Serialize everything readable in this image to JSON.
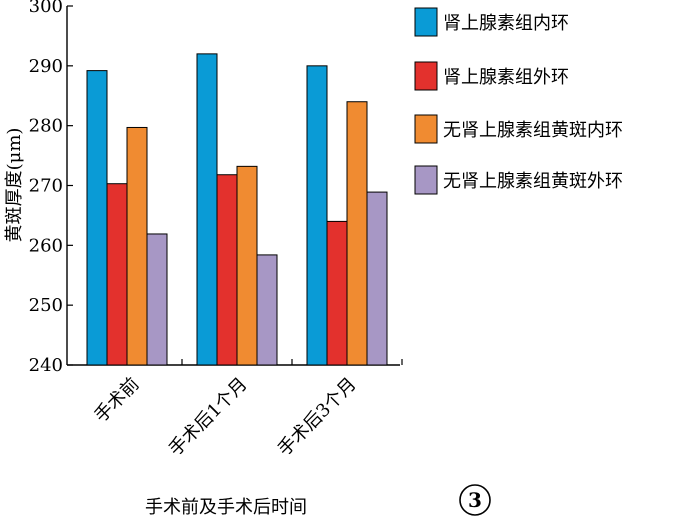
{
  "chart_data": {
    "type": "bar",
    "categories": [
      "手术前",
      "手术后1个月",
      "手术后3个月"
    ],
    "series": [
      {
        "name": "肾上腺素组内环",
        "color": "#0a9bd6",
        "values": [
          289.2,
          292.0,
          290.0
        ]
      },
      {
        "name": "肾上腺素组外环",
        "color": "#e3312d",
        "values": [
          270.3,
          271.8,
          264.0
        ]
      },
      {
        "name": "无肾上腺素组黄斑内环",
        "color": "#f08b31",
        "values": [
          279.7,
          273.2,
          284.0
        ]
      },
      {
        "name": "无肾上腺素组黄斑外环",
        "color": "#a797c5",
        "values": [
          261.9,
          258.4,
          268.9
        ]
      }
    ],
    "xlabel": "手术前及手术后时间",
    "ylabel": "黄斑厚度(μm)",
    "ylim": [
      240,
      300
    ],
    "yticks": [
      240,
      250,
      260,
      270,
      280,
      290,
      300
    ],
    "grid": false,
    "legend": "right"
  },
  "panel_label": "3"
}
